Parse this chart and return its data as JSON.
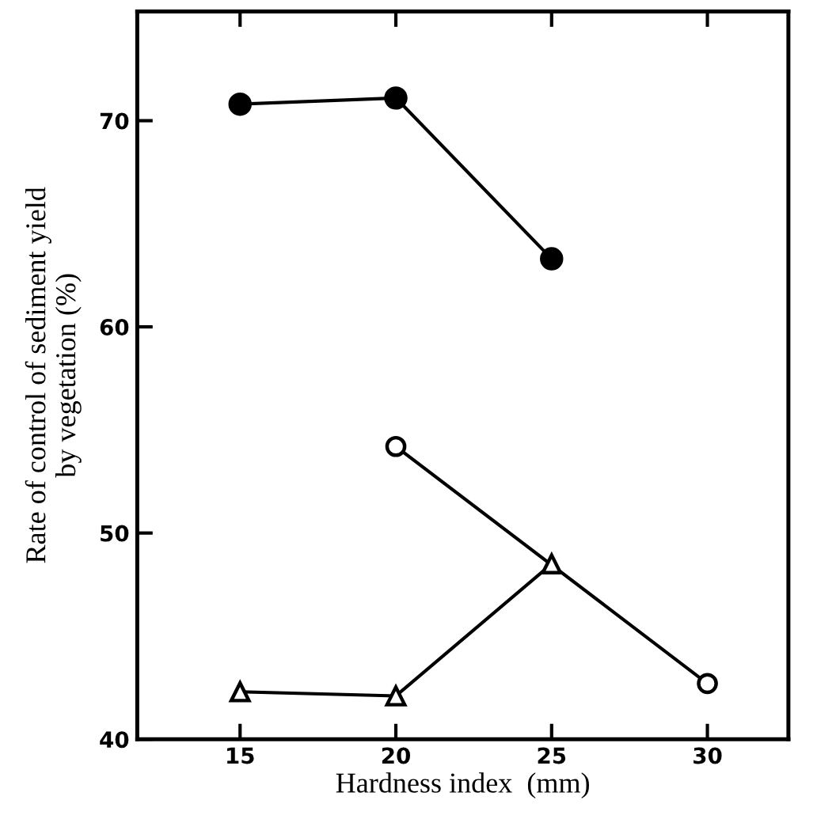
{
  "chart_data": {
    "type": "line",
    "xlabel": "Hardness index  (mm)",
    "ylabel": "Rate of control of sediment yield\nby vegetation (%)",
    "xlim": [
      11.7,
      32.6
    ],
    "ylim": [
      40,
      75.3
    ],
    "xticks": [
      15,
      20,
      25,
      30
    ],
    "yticks": [
      40,
      50,
      60,
      70
    ],
    "grid": false,
    "legend": false,
    "line_style": "solid",
    "series": [
      {
        "color": "#000000",
        "marker": "circle",
        "x": [
          15,
          20,
          25
        ],
        "values": [
          70.8,
          71.1,
          63.3
        ]
      },
      {
        "color": "#000000",
        "marker": "circle",
        "x": [
          20,
          30
        ],
        "values": [
          54.2,
          42.7
        ]
      },
      {
        "color": "#000000",
        "marker": "triangle",
        "x": [
          15,
          20,
          25
        ],
        "values": [
          42.3,
          42.1,
          48.5
        ]
      }
    ]
  }
}
